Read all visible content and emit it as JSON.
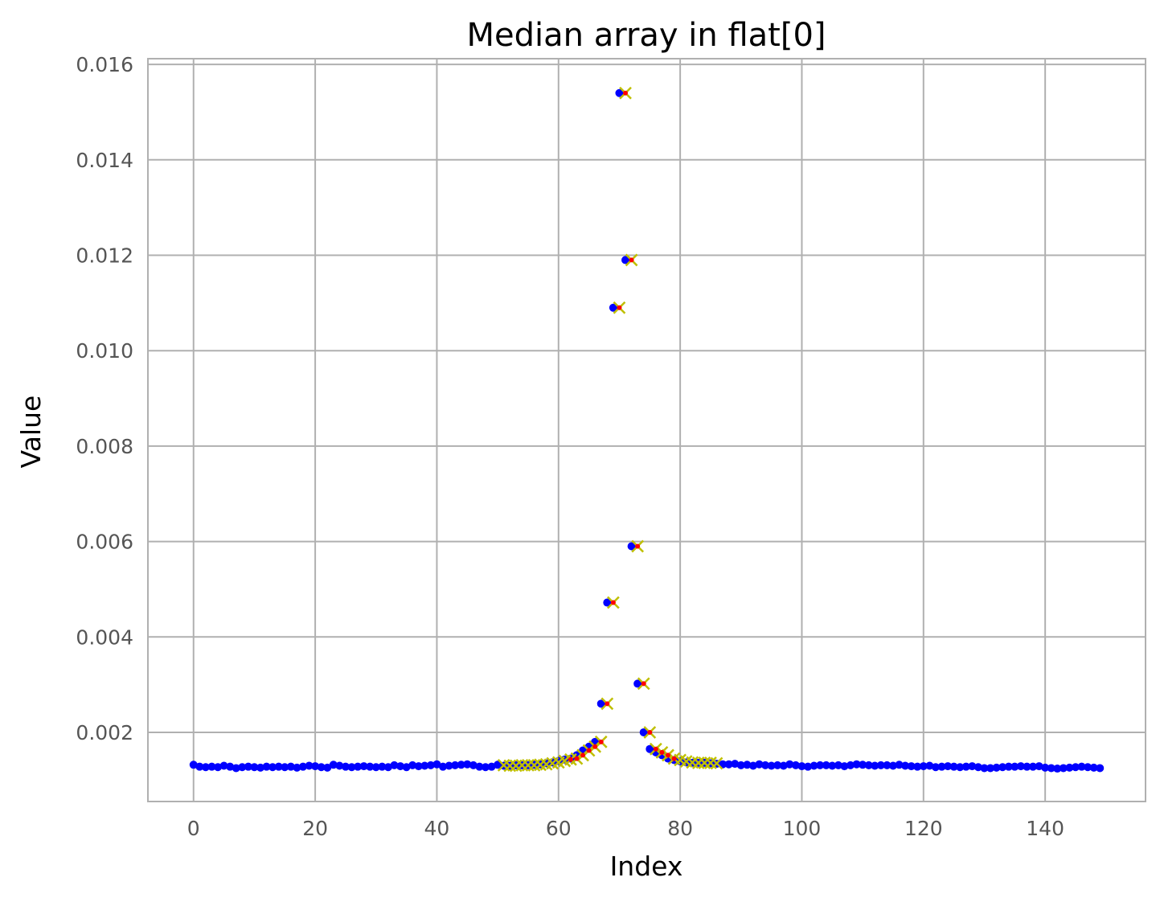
{
  "chart_data": {
    "type": "scatter",
    "title": "Median array in flat[0]",
    "xlabel": "Index",
    "ylabel": "Value",
    "xlim": [
      -7.5,
      156.5
    ],
    "ylim": [
      0.00055,
      0.01612
    ],
    "x_ticks": [
      0,
      20,
      40,
      60,
      80,
      100,
      120,
      140
    ],
    "x_tick_labels": [
      "0",
      "20",
      "40",
      "60",
      "80",
      "100",
      "120",
      "140"
    ],
    "y_ticks": [
      0.002,
      0.004,
      0.006,
      0.008,
      0.01,
      0.012,
      0.014,
      0.016
    ],
    "y_tick_labels": [
      "0.002",
      "0.004",
      "0.006",
      "0.008",
      "0.010",
      "0.012",
      "0.014",
      "0.016"
    ],
    "grid": true,
    "colors": {
      "points": "#0000ff",
      "window_markers": "#bfbf00",
      "peak_markers": "#ff0000",
      "grid": "#b0b0b0",
      "tick_text": "#555555"
    },
    "series": [
      {
        "marker": "dot",
        "color": "#0000ff",
        "x_start": 0,
        "values": [
          0.00132,
          0.00128,
          0.00127,
          0.00128,
          0.00127,
          0.0013,
          0.00128,
          0.00125,
          0.00127,
          0.00128,
          0.00127,
          0.00126,
          0.00128,
          0.00127,
          0.00128,
          0.00127,
          0.00128,
          0.00126,
          0.00128,
          0.0013,
          0.00129,
          0.00127,
          0.00126,
          0.00132,
          0.0013,
          0.00128,
          0.00127,
          0.00128,
          0.00129,
          0.00128,
          0.00127,
          0.00128,
          0.00127,
          0.00131,
          0.00129,
          0.00127,
          0.00131,
          0.00129,
          0.0013,
          0.00131,
          0.00133,
          0.00128,
          0.0013,
          0.00131,
          0.00132,
          0.00133,
          0.00131,
          0.00128,
          0.00127,
          0.00128,
          0.00132,
          0.0013,
          0.0013,
          0.00131,
          0.00131,
          0.00131,
          0.00132,
          0.00133,
          0.00135,
          0.00137,
          0.0014,
          0.00143,
          0.00145,
          0.00152,
          0.00162,
          0.0017,
          0.0018,
          0.0026,
          0.00472,
          0.0109,
          0.0154,
          0.0119,
          0.0059,
          0.00302,
          0.002,
          0.00165,
          0.00158,
          0.00152,
          0.00145,
          0.00142,
          0.00139,
          0.00137,
          0.00136,
          0.00136,
          0.00136,
          0.00135,
          0.00134,
          0.00133,
          0.00133,
          0.00134,
          0.00131,
          0.00132,
          0.0013,
          0.00133,
          0.00131,
          0.0013,
          0.00131,
          0.0013,
          0.00133,
          0.00131,
          0.00129,
          0.00128,
          0.0013,
          0.00131,
          0.00131,
          0.0013,
          0.00131,
          0.00129,
          0.00131,
          0.00133,
          0.00132,
          0.00131,
          0.0013,
          0.00131,
          0.00131,
          0.0013,
          0.00132,
          0.0013,
          0.00129,
          0.00128,
          0.00129,
          0.0013,
          0.00127,
          0.00128,
          0.00129,
          0.00128,
          0.00127,
          0.00128,
          0.00129,
          0.00127,
          0.00125,
          0.00125,
          0.00126,
          0.00127,
          0.00128,
          0.00128,
          0.00129,
          0.00128,
          0.00128,
          0.00129,
          0.00126,
          0.00125,
          0.00124,
          0.00125,
          0.00126,
          0.00127,
          0.00128,
          0.00127,
          0.00126,
          0.00125
        ]
      },
      {
        "marker": "x",
        "color": "#bfbf00",
        "x_start": 51,
        "values": [
          0.00131,
          0.0013,
          0.0013,
          0.00131,
          0.00131,
          0.00131,
          0.00132,
          0.00133,
          0.00135,
          0.00137,
          0.0014,
          0.00143,
          0.00145,
          0.00152,
          0.00162,
          0.0017,
          0.0018,
          0.0026,
          0.00472,
          0.0109,
          0.0154,
          0.0119,
          0.0059,
          0.00302,
          0.002,
          0.00165,
          0.00158,
          0.00152,
          0.00145,
          0.00142,
          0.00139,
          0.00137,
          0.00136,
          0.00136,
          0.00136,
          0.00135
        ]
      },
      {
        "marker": "dot",
        "color": "#ff0000",
        "x_start": 62,
        "values": [
          0.00143,
          0.00145,
          0.00152,
          0.00162,
          0.0017,
          0.0018,
          0.0026,
          0.00472,
          0.0109,
          0.0154,
          0.0119,
          0.0059,
          0.00302,
          0.002,
          0.00165,
          0.00158,
          0.00152,
          0.00145
        ]
      }
    ]
  }
}
